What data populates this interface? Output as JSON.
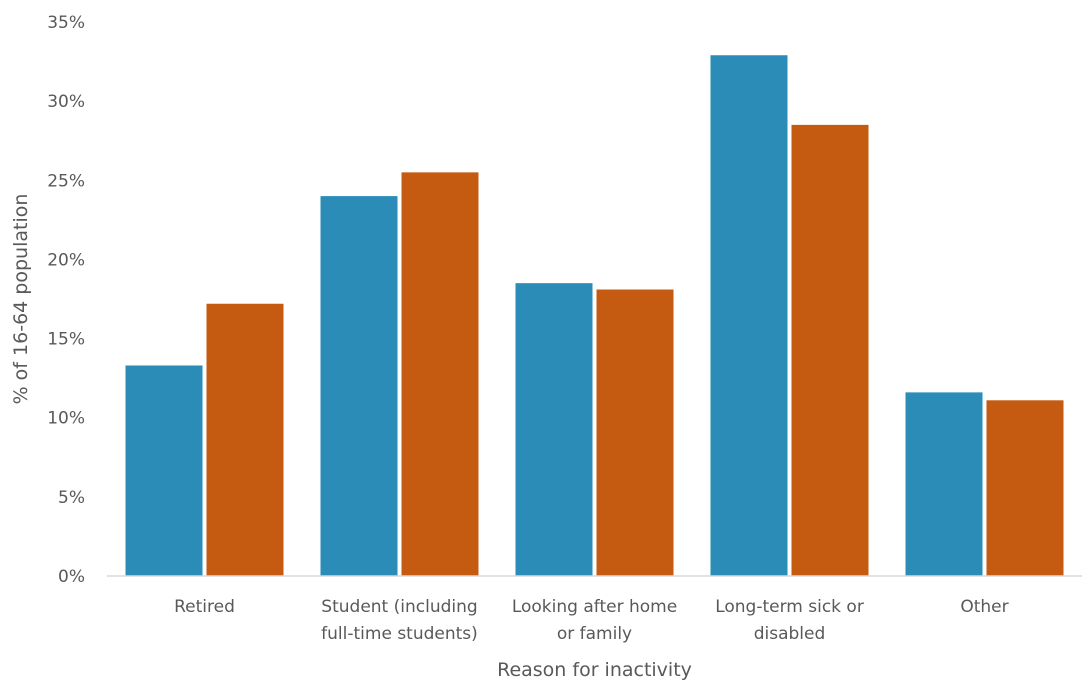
{
  "chart_data": {
    "type": "bar",
    "title": "",
    "xlabel": "Reason for inactivity",
    "ylabel": "% of 16-64 population",
    "ylim": [
      0,
      35
    ],
    "y_ticks": [
      "0%",
      "5%",
      "10%",
      "15%",
      "20%",
      "25%",
      "30%",
      "35%"
    ],
    "categories": [
      [
        "Retired"
      ],
      [
        "Student (including",
        "full-time students)"
      ],
      [
        "Looking after home",
        "or family"
      ],
      [
        "Long-term sick or",
        "disabled"
      ],
      [
        "Other"
      ]
    ],
    "series": [
      {
        "color": "#2a8cb7",
        "values": [
          13.3,
          24.0,
          18.5,
          32.9,
          11.6
        ]
      },
      {
        "color": "#c55a11",
        "values": [
          17.2,
          25.5,
          18.1,
          28.5,
          11.1
        ]
      }
    ],
    "grid": false,
    "legend": "none"
  }
}
